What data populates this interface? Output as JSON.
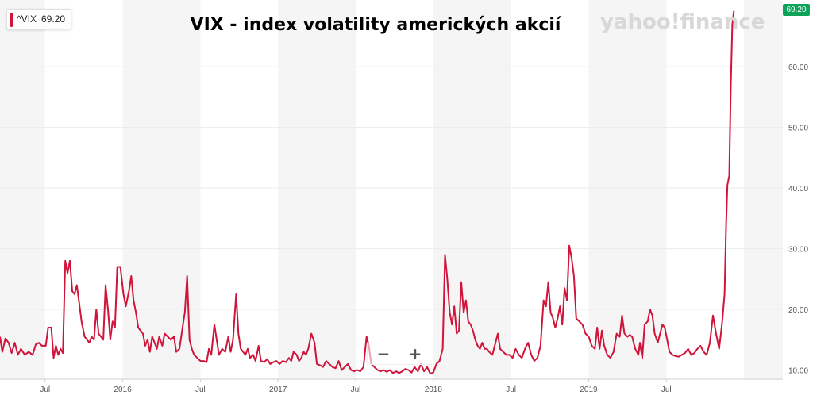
{
  "chart_data": {
    "type": "line",
    "title": "VIX - index volatility amerických akcií",
    "brand": "yahoo!finance",
    "legend": {
      "symbol": "^VIX",
      "value": "69.20",
      "placement": "top-left",
      "color": "#d0143a"
    },
    "last_value_label": "69.20",
    "last_value_color": "#0fa35a",
    "line_color": "#d0143a",
    "y_axis": {
      "side": "right",
      "ticks": [
        "10.00",
        "20.00",
        "30.00",
        "40.00",
        "50.00",
        "60.00"
      ],
      "tick_values": [
        10,
        20,
        30,
        40,
        50,
        60
      ],
      "ylim": [
        8.5,
        71
      ]
    },
    "x_axis": {
      "ticks": [
        {
          "label": "Jul",
          "t": 2015.5
        },
        {
          "label": "2016",
          "t": 2016.0
        },
        {
          "label": "Jul",
          "t": 2016.5
        },
        {
          "label": "2017",
          "t": 2017.0
        },
        {
          "label": "Jul",
          "t": 2017.5
        },
        {
          "label": "2018",
          "t": 2018.0
        },
        {
          "label": "Jul",
          "t": 2018.5
        },
        {
          "label": "2019",
          "t": 2019.0
        },
        {
          "label": "Jul",
          "t": 2019.5
        }
      ],
      "xlim": [
        2015.21,
        2020.25
      ],
      "bands": [
        [
          2015.0,
          2015.5
        ],
        [
          2016.0,
          2016.5
        ],
        [
          2017.0,
          2017.5
        ],
        [
          2018.0,
          2018.5
        ],
        [
          2019.0,
          2019.5
        ],
        [
          2020.0,
          2020.5
        ]
      ]
    },
    "grid": true,
    "series": [
      {
        "values": [
          [
            2015.21,
            15.5
          ],
          [
            2015.225,
            13.0
          ],
          [
            2015.245,
            15.2
          ],
          [
            2015.265,
            14.5
          ],
          [
            2015.285,
            12.8
          ],
          [
            2015.305,
            14.5
          ],
          [
            2015.325,
            12.5
          ],
          [
            2015.345,
            13.5
          ],
          [
            2015.37,
            12.5
          ],
          [
            2015.395,
            13.0
          ],
          [
            2015.42,
            12.5
          ],
          [
            2015.44,
            14.2
          ],
          [
            2015.46,
            14.5
          ],
          [
            2015.48,
            14.0
          ],
          [
            2015.505,
            14.0
          ],
          [
            2015.52,
            17.0
          ],
          [
            2015.54,
            17.0
          ],
          [
            2015.555,
            12.0
          ],
          [
            2015.57,
            14.0
          ],
          [
            2015.585,
            12.5
          ],
          [
            2015.6,
            13.5
          ],
          [
            2015.615,
            12.8
          ],
          [
            2015.63,
            28.0
          ],
          [
            2015.645,
            26.0
          ],
          [
            2015.66,
            28.0
          ],
          [
            2015.675,
            23.0
          ],
          [
            2015.69,
            22.5
          ],
          [
            2015.705,
            24.0
          ],
          [
            2015.72,
            21.0
          ],
          [
            2015.735,
            18.0
          ],
          [
            2015.755,
            15.5
          ],
          [
            2015.77,
            15.0
          ],
          [
            2015.785,
            14.5
          ],
          [
            2015.8,
            15.5
          ],
          [
            2015.815,
            15.0
          ],
          [
            2015.83,
            20.0
          ],
          [
            2015.845,
            16.0
          ],
          [
            2015.86,
            15.5
          ],
          [
            2015.875,
            15.0
          ],
          [
            2015.89,
            24.0
          ],
          [
            2015.905,
            20.0
          ],
          [
            2015.92,
            15.0
          ],
          [
            2015.935,
            18.0
          ],
          [
            2015.95,
            17.0
          ],
          [
            2015.965,
            27.0
          ],
          [
            2015.985,
            27.0
          ],
          [
            2016.005,
            22.5
          ],
          [
            2016.02,
            20.5
          ],
          [
            2016.04,
            23.0
          ],
          [
            2016.055,
            25.5
          ],
          [
            2016.07,
            21.5
          ],
          [
            2016.085,
            19.5
          ],
          [
            2016.1,
            17.0
          ],
          [
            2016.115,
            16.5
          ],
          [
            2016.13,
            16.0
          ],
          [
            2016.145,
            14.0
          ],
          [
            2016.16,
            15.0
          ],
          [
            2016.175,
            13.0
          ],
          [
            2016.19,
            15.5
          ],
          [
            2016.205,
            14.5
          ],
          [
            2016.22,
            13.5
          ],
          [
            2016.235,
            15.5
          ],
          [
            2016.255,
            14.0
          ],
          [
            2016.27,
            16.0
          ],
          [
            2016.29,
            15.5
          ],
          [
            2016.31,
            15.0
          ],
          [
            2016.33,
            15.5
          ],
          [
            2016.345,
            13.0
          ],
          [
            2016.365,
            13.5
          ],
          [
            2016.385,
            17.0
          ],
          [
            2016.4,
            19.5
          ],
          [
            2016.415,
            25.5
          ],
          [
            2016.43,
            15.0
          ],
          [
            2016.445,
            13.5
          ],
          [
            2016.46,
            12.5
          ],
          [
            2016.48,
            12.0
          ],
          [
            2016.5,
            11.5
          ],
          [
            2016.52,
            11.5
          ],
          [
            2016.54,
            11.3
          ],
          [
            2016.555,
            13.5
          ],
          [
            2016.57,
            12.5
          ],
          [
            2016.59,
            17.5
          ],
          [
            2016.605,
            15.0
          ],
          [
            2016.62,
            12.5
          ],
          [
            2016.64,
            13.5
          ],
          [
            2016.66,
            13.0
          ],
          [
            2016.68,
            15.5
          ],
          [
            2016.695,
            13.0
          ],
          [
            2016.71,
            15.0
          ],
          [
            2016.73,
            22.5
          ],
          [
            2016.745,
            16.0
          ],
          [
            2016.76,
            13.5
          ],
          [
            2016.775,
            13.0
          ],
          [
            2016.79,
            12.5
          ],
          [
            2016.805,
            13.5
          ],
          [
            2016.82,
            12.0
          ],
          [
            2016.84,
            12.5
          ],
          [
            2016.855,
            11.5
          ],
          [
            2016.875,
            14.0
          ],
          [
            2016.89,
            11.5
          ],
          [
            2016.91,
            11.3
          ],
          [
            2016.93,
            11.8
          ],
          [
            2016.95,
            11.0
          ],
          [
            2016.97,
            11.3
          ],
          [
            2016.99,
            11.5
          ],
          [
            2017.01,
            11.0
          ],
          [
            2017.03,
            11.5
          ],
          [
            2017.05,
            11.3
          ],
          [
            2017.07,
            12.0
          ],
          [
            2017.085,
            11.5
          ],
          [
            2017.1,
            13.0
          ],
          [
            2017.12,
            12.5
          ],
          [
            2017.135,
            11.5
          ],
          [
            2017.15,
            12.0
          ],
          [
            2017.165,
            13.0
          ],
          [
            2017.18,
            12.5
          ],
          [
            2017.195,
            13.5
          ],
          [
            2017.215,
            16.0
          ],
          [
            2017.235,
            14.5
          ],
          [
            2017.25,
            11.0
          ],
          [
            2017.27,
            10.8
          ],
          [
            2017.29,
            10.5
          ],
          [
            2017.31,
            11.5
          ],
          [
            2017.33,
            11.0
          ],
          [
            2017.35,
            10.5
          ],
          [
            2017.37,
            10.3
          ],
          [
            2017.39,
            11.5
          ],
          [
            2017.41,
            10.0
          ],
          [
            2017.43,
            10.5
          ],
          [
            2017.45,
            11.0
          ],
          [
            2017.47,
            10.0
          ],
          [
            2017.49,
            9.8
          ],
          [
            2017.51,
            10.0
          ],
          [
            2017.53,
            9.8
          ],
          [
            2017.55,
            10.5
          ],
          [
            2017.57,
            15.5
          ],
          [
            2017.585,
            14.0
          ],
          [
            2017.6,
            11.0
          ],
          [
            2017.62,
            10.5
          ],
          [
            2017.64,
            10.0
          ],
          [
            2017.66,
            9.8
          ],
          [
            2017.68,
            10.0
          ],
          [
            2017.7,
            9.7
          ],
          [
            2017.72,
            10.0
          ],
          [
            2017.74,
            9.5
          ],
          [
            2017.76,
            9.8
          ],
          [
            2017.78,
            9.5
          ],
          [
            2017.8,
            9.8
          ],
          [
            2017.82,
            10.2
          ],
          [
            2017.84,
            10.0
          ],
          [
            2017.86,
            9.6
          ],
          [
            2017.88,
            10.5
          ],
          [
            2017.9,
            9.8
          ],
          [
            2017.92,
            11.0
          ],
          [
            2017.94,
            9.8
          ],
          [
            2017.96,
            10.5
          ],
          [
            2017.98,
            9.4
          ],
          [
            2018.0,
            9.6
          ],
          [
            2018.02,
            11.0
          ],
          [
            2018.04,
            11.5
          ],
          [
            2018.06,
            13.5
          ],
          [
            2018.075,
            29.0
          ],
          [
            2018.09,
            25.0
          ],
          [
            2018.105,
            19.5
          ],
          [
            2018.12,
            17.5
          ],
          [
            2018.135,
            20.5
          ],
          [
            2018.15,
            16.0
          ],
          [
            2018.165,
            16.5
          ],
          [
            2018.18,
            24.5
          ],
          [
            2018.195,
            19.5
          ],
          [
            2018.21,
            21.5
          ],
          [
            2018.225,
            18.0
          ],
          [
            2018.24,
            17.5
          ],
          [
            2018.255,
            16.5
          ],
          [
            2018.27,
            15.0
          ],
          [
            2018.285,
            14.0
          ],
          [
            2018.3,
            13.5
          ],
          [
            2018.315,
            14.5
          ],
          [
            2018.33,
            13.5
          ],
          [
            2018.345,
            13.5
          ],
          [
            2018.36,
            13.0
          ],
          [
            2018.38,
            12.5
          ],
          [
            2018.4,
            14.5
          ],
          [
            2018.415,
            16.0
          ],
          [
            2018.43,
            13.5
          ],
          [
            2018.45,
            13.0
          ],
          [
            2018.47,
            12.5
          ],
          [
            2018.49,
            12.5
          ],
          [
            2018.51,
            12.0
          ],
          [
            2018.53,
            13.5
          ],
          [
            2018.55,
            12.5
          ],
          [
            2018.57,
            12.0
          ],
          [
            2018.59,
            13.5
          ],
          [
            2018.61,
            14.5
          ],
          [
            2018.63,
            12.5
          ],
          [
            2018.65,
            11.5
          ],
          [
            2018.67,
            12.0
          ],
          [
            2018.69,
            14.0
          ],
          [
            2018.71,
            21.5
          ],
          [
            2018.725,
            20.5
          ],
          [
            2018.74,
            24.5
          ],
          [
            2018.755,
            19.5
          ],
          [
            2018.77,
            18.5
          ],
          [
            2018.785,
            17.0
          ],
          [
            2018.8,
            18.5
          ],
          [
            2018.815,
            20.5
          ],
          [
            2018.83,
            17.5
          ],
          [
            2018.845,
            23.5
          ],
          [
            2018.86,
            21.5
          ],
          [
            2018.875,
            30.5
          ],
          [
            2018.89,
            28.5
          ],
          [
            2018.905,
            25.5
          ],
          [
            2018.92,
            18.5
          ],
          [
            2018.94,
            18.0
          ],
          [
            2018.96,
            17.5
          ],
          [
            2018.98,
            16.0
          ],
          [
            2019.0,
            15.5
          ],
          [
            2019.02,
            14.0
          ],
          [
            2019.04,
            13.5
          ],
          [
            2019.055,
            17.0
          ],
          [
            2019.07,
            13.5
          ],
          [
            2019.085,
            16.5
          ],
          [
            2019.1,
            14.0
          ],
          [
            2019.12,
            12.5
          ],
          [
            2019.14,
            12.0
          ],
          [
            2019.16,
            13.0
          ],
          [
            2019.18,
            16.0
          ],
          [
            2019.2,
            15.5
          ],
          [
            2019.215,
            19.0
          ],
          [
            2019.23,
            16.0
          ],
          [
            2019.25,
            15.5
          ],
          [
            2019.265,
            15.8
          ],
          [
            2019.28,
            15.5
          ],
          [
            2019.3,
            13.5
          ],
          [
            2019.32,
            12.5
          ],
          [
            2019.33,
            14.5
          ],
          [
            2019.345,
            12.0
          ],
          [
            2019.36,
            17.5
          ],
          [
            2019.38,
            18.0
          ],
          [
            2019.395,
            20.0
          ],
          [
            2019.41,
            19.0
          ],
          [
            2019.425,
            16.0
          ],
          [
            2019.445,
            14.5
          ],
          [
            2019.46,
            16.0
          ],
          [
            2019.475,
            17.5
          ],
          [
            2019.49,
            17.0
          ],
          [
            2019.505,
            15.0
          ],
          [
            2019.52,
            13.0
          ],
          [
            2019.54,
            12.5
          ],
          [
            2019.56,
            12.3
          ],
          [
            2019.58,
            12.2
          ],
          [
            2019.6,
            12.5
          ],
          [
            2019.62,
            12.8
          ],
          [
            2019.64,
            13.5
          ],
          [
            2019.66,
            12.5
          ],
          [
            2019.68,
            12.8
          ],
          [
            2019.7,
            13.5
          ],
          [
            2019.72,
            14.0
          ],
          [
            2019.74,
            13.0
          ],
          [
            2019.76,
            12.5
          ],
          [
            2019.78,
            14.5
          ],
          [
            2019.8,
            19.0
          ],
          [
            2019.82,
            16.0
          ],
          [
            2019.84,
            13.5
          ],
          [
            2019.86,
            18.0
          ],
          [
            2019.875,
            22.5
          ],
          [
            2019.885,
            34.0
          ],
          [
            2019.893,
            40.5
          ],
          [
            2019.905,
            42.0
          ],
          [
            2019.915,
            57.0
          ],
          [
            2019.925,
            67.0
          ],
          [
            2019.935,
            69.2
          ]
        ]
      }
    ]
  }
}
